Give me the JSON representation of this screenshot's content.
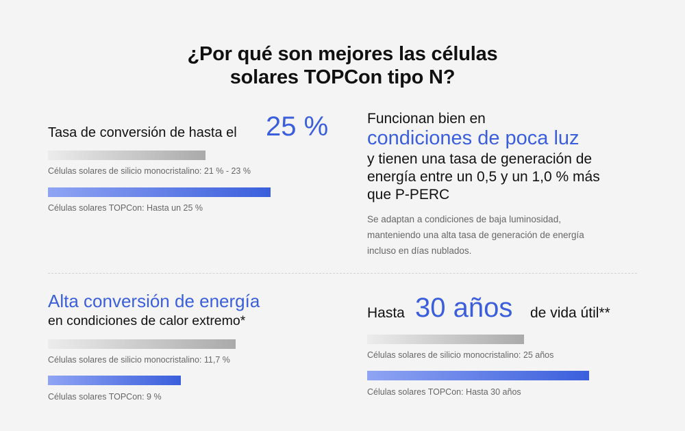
{
  "title": {
    "line1": "¿Por qué son mejores las células",
    "line2": "solares TOPCon tipo N?"
  },
  "conversion": {
    "label": "Tasa de conversión de hasta el",
    "value": "25 %",
    "bars": [
      {
        "label": "Células solares de silicio monocristalino: 21 % - 23 %",
        "percent": 23
      },
      {
        "label": "Células solares TOPCon: Hasta un 25 %",
        "percent": 25
      }
    ]
  },
  "low_light": {
    "line1": "Funcionan bien en",
    "highlight": "condiciones de poca luz",
    "line2": "y tienen una tasa de generación de",
    "line3": "energía entre un 0,5 y un 1,0 % más",
    "line4": "que P-PERC",
    "description": "Se adaptan a condiciones de baja luminosidad, manteniendo una alta tasa de generación de energía incluso en días nublados."
  },
  "heat": {
    "highlight": "Alta conversión de energía",
    "subtitle": "en condiciones de calor extremo*",
    "bars": [
      {
        "label": "Células solares de silicio monocristalino: 11,7 %",
        "percent": 11.7
      },
      {
        "label": "Células solares TOPCon: 9 %",
        "percent": 9
      }
    ]
  },
  "lifetime": {
    "prefix": "Hasta",
    "value": "30 años",
    "suffix": "de vida útil**",
    "bars": [
      {
        "label": "Células solares de silicio monocristalino: 25 años",
        "years": 25
      },
      {
        "label": "Células solares TOPCon: Hasta 30 años",
        "years": 30
      }
    ]
  },
  "colors": {
    "accent": "#3b5fdc",
    "background": "#f4f4f4"
  }
}
